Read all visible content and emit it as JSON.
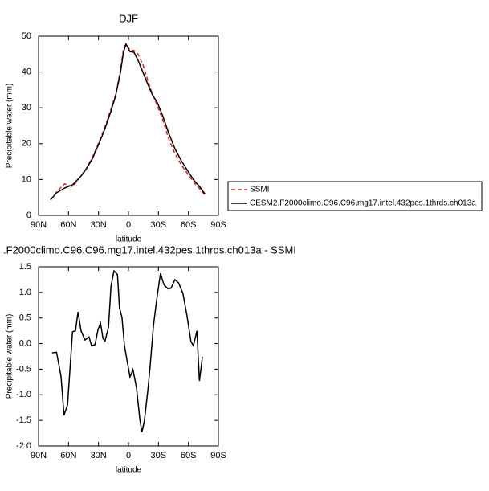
{
  "chart_data": [
    {
      "type": "line",
      "title": "DJF",
      "xlabel": "latitude",
      "ylabel": "Precipitable water (mm)",
      "x": [
        78,
        72,
        64,
        56,
        48,
        42,
        36,
        30,
        24,
        18,
        13,
        8,
        5,
        2.5,
        -1.5,
        -5.5,
        -9.5,
        -14.5,
        -19.5,
        -24,
        -29,
        -34.5,
        -40,
        -46.5,
        -53,
        -59.5,
        -66,
        -71,
        -76.5
      ],
      "series": [
        {
          "name": "SSMI",
          "color": "#e0201b",
          "dashed": true,
          "values": [
            4.3,
            6.5,
            8.8,
            8.0,
            10.8,
            13.2,
            16.3,
            20.2,
            24.3,
            29.3,
            33.5,
            40.5,
            46.5,
            47.8,
            46.2,
            46.0,
            45.0,
            42.0,
            37.5,
            33.8,
            30.5,
            26.5,
            21.5,
            17.3,
            14.0,
            11.5,
            9.0,
            7.5,
            5.7
          ]
        },
        {
          "name": "CESM2.F2000climo.C96.C96.mg17.intel.432pes.1thrds.ch013a",
          "color": "#000000",
          "dashed": false,
          "values": [
            4.3,
            6.3,
            7.6,
            8.5,
            10.8,
            13.0,
            15.9,
            19.7,
            23.8,
            28.7,
            33.2,
            39.9,
            45.5,
            47.8,
            45.7,
            45.5,
            43.3,
            39.9,
            36.5,
            33.6,
            31.4,
            27.6,
            23.1,
            18.6,
            15.2,
            12.3,
            9.6,
            8.1,
            6.0
          ]
        }
      ],
      "xlim": [
        90,
        -90
      ],
      "xticks": [
        {
          "value": 90,
          "label": "90N"
        },
        {
          "value": 60,
          "label": "60N"
        },
        {
          "value": 30,
          "label": "30N"
        },
        0,
        {
          "value": -30,
          "label": "30S"
        },
        {
          "value": -60,
          "label": "60S"
        },
        {
          "value": -90,
          "label": "90S"
        }
      ],
      "ylim": [
        0,
        50
      ],
      "yticks": [
        0,
        10,
        20,
        30,
        40,
        50
      ],
      "legend": "right"
    },
    {
      "type": "line",
      "title": ".F2000climo.C96.C96.mg17.intel.432pes.1thrds.ch013a - SSMI",
      "xlabel": "latitude",
      "ylabel": "Precipitable water (mm)",
      "x": [
        76.5,
        72,
        67.5,
        64.5,
        61,
        56,
        53,
        50.5,
        47.5,
        43.5,
        39.5,
        37,
        33.5,
        30.5,
        28,
        25.5,
        23.5,
        20,
        17.5,
        14.5,
        11,
        9,
        6.5,
        4,
        1.5,
        -1.5,
        -4.5,
        -8,
        -11.5,
        -13.5,
        -16,
        -19.5,
        -21.5,
        -25,
        -28,
        -32,
        -35.5,
        -39.5,
        -42.5,
        -46.5,
        -50,
        -54.5,
        -58.5,
        -62.5,
        -65,
        -68.5,
        -71,
        -74
      ],
      "values": [
        -0.18,
        -0.17,
        -0.64,
        -1.4,
        -1.2,
        0.23,
        0.25,
        0.62,
        0.25,
        0.07,
        0.13,
        -0.04,
        -0.02,
        0.27,
        0.4,
        0.1,
        0.05,
        0.32,
        1.12,
        1.42,
        1.35,
        0.7,
        0.51,
        -0.04,
        -0.32,
        -0.65,
        -0.51,
        -0.86,
        -1.5,
        -1.73,
        -1.5,
        -0.89,
        -0.48,
        0.35,
        0.82,
        1.37,
        1.15,
        1.07,
        1.08,
        1.25,
        1.19,
        0.98,
        0.55,
        0.04,
        -0.04,
        0.25,
        -0.73,
        -0.26
      ],
      "color": "#000000",
      "xlim": [
        90,
        -90
      ],
      "xticks": [
        {
          "value": 90,
          "label": "90N"
        },
        {
          "value": 60,
          "label": "60N"
        },
        {
          "value": 30,
          "label": "30N"
        },
        0,
        {
          "value": -30,
          "label": "30S"
        },
        {
          "value": -60,
          "label": "60S"
        },
        {
          "value": -90,
          "label": "90S"
        }
      ],
      "ylim": [
        -2,
        1.5
      ],
      "yticks": [
        {
          "value": -2,
          "label": "-2.0"
        },
        -1.5,
        {
          "value": -1,
          "label": "-1.0"
        },
        -0.5,
        {
          "value": 0,
          "label": "0.0"
        },
        0.5,
        {
          "value": 1,
          "label": "1.0"
        },
        1.5
      ]
    }
  ]
}
